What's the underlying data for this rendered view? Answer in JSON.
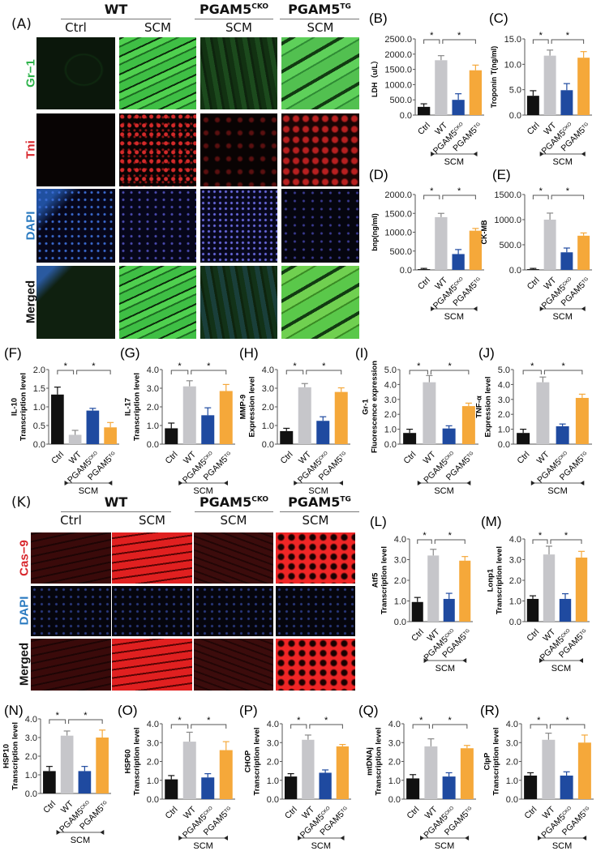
{
  "panel_a": {
    "letter": "(A)",
    "groups": [
      {
        "name": "WT",
        "sup": ""
      },
      {
        "name": "PGAM5",
        "sup": "CKO"
      },
      {
        "name": "PGAM5",
        "sup": "TG"
      }
    ],
    "columns": [
      "Ctrl",
      "SCM",
      "SCM",
      "SCM"
    ],
    "rows": [
      {
        "label": "Gr−1",
        "color": "#2db34a"
      },
      {
        "label": "Tni",
        "color": "#d8262c"
      },
      {
        "label": "DAPI",
        "color": "#2a7ac0"
      },
      {
        "label": "Merged",
        "color": "#111111"
      }
    ]
  },
  "panel_k": {
    "letter": "(K)",
    "groups": [
      {
        "name": "WT",
        "sup": ""
      },
      {
        "name": "PGAM5",
        "sup": "CKO"
      },
      {
        "name": "PGAM5",
        "sup": "TG"
      }
    ],
    "columns": [
      "Ctrl",
      "SCM",
      "SCM",
      "SCM"
    ],
    "rows": [
      {
        "label": "Cas−9",
        "color": "#d8262c"
      },
      {
        "label": "DAPI",
        "color": "#2a7ac0"
      },
      {
        "label": "Merged",
        "color": "#111111"
      }
    ]
  },
  "colors": {
    "Ctrl": "#111111",
    "WT": "#c6c6ca",
    "PGAM5CKO": "#1f4aa0",
    "PGAM5TG": "#f5a83a"
  },
  "chart_data": [
    {
      "letter": "(B)",
      "type": "bar",
      "ylabel": [
        "LDH（u/L）"
      ],
      "ylim": [
        0,
        2500
      ],
      "yticks": [
        "0.0",
        "500.0",
        "1000.0",
        "1500.0",
        "2000.0",
        "2500.0"
      ],
      "tickvals": [
        0,
        500,
        1000,
        1500,
        2000,
        2500
      ],
      "categories": [
        {
          "t": "Ctrl"
        },
        {
          "t": "WT"
        },
        {
          "t": "PGAM5",
          "sup": "CKO"
        },
        {
          "t": "PGAM5",
          "sup": "TG"
        }
      ],
      "values": [
        270,
        1800,
        500,
        1470
      ],
      "errors": [
        100,
        150,
        200,
        170
      ],
      "significance": [
        "*",
        "*"
      ],
      "group_label": "SCM"
    },
    {
      "letter": "(C)",
      "type": "bar",
      "ylabel": [
        "Troponin T(ng/ml)"
      ],
      "ylim": [
        0,
        15
      ],
      "yticks": [
        "0.0",
        "5.0",
        "10.0",
        "15.0"
      ],
      "tickvals": [
        0,
        5,
        10,
        15
      ],
      "categories": [
        {
          "t": "Ctrl"
        },
        {
          "t": "WT"
        },
        {
          "t": "PGAM5",
          "sup": "CKO"
        },
        {
          "t": "PGAM5",
          "sup": "TG"
        }
      ],
      "values": [
        3.8,
        11.7,
        4.9,
        11.3
      ],
      "errors": [
        1.0,
        1.1,
        1.3,
        1.2
      ],
      "significance": [
        "*",
        "*"
      ],
      "group_label": "SCM"
    },
    {
      "letter": "(D)",
      "type": "bar",
      "ylabel": [
        "bnp(ng/ml)"
      ],
      "ylim": [
        0,
        2000
      ],
      "yticks": [
        "0.0",
        "500.0",
        "1000.0",
        "1500.0",
        "2000.0"
      ],
      "tickvals": [
        0,
        500,
        1000,
        1500,
        2000
      ],
      "categories": [
        {
          "t": "Ctrl"
        },
        {
          "t": "WT"
        },
        {
          "t": "PGAM5",
          "sup": "CKO"
        },
        {
          "t": "PGAM5",
          "sup": "TG"
        }
      ],
      "values": [
        20,
        1400,
        420,
        1040
      ],
      "errors": [
        20,
        100,
        120,
        60
      ],
      "significance": [
        "*",
        "*"
      ],
      "group_label": "SCM"
    },
    {
      "letter": "(E)",
      "type": "bar",
      "ylabel": [
        "CK-MB"
      ],
      "ylim": [
        0,
        1500
      ],
      "yticks": [
        "0.0",
        "500.0",
        "1000.0",
        "1500.0"
      ],
      "tickvals": [
        0,
        500,
        1000,
        1500
      ],
      "categories": [
        {
          "t": "Ctrl"
        },
        {
          "t": "WT"
        },
        {
          "t": "PGAM5",
          "sup": "CKO"
        },
        {
          "t": "PGAM5",
          "sup": "TG"
        }
      ],
      "values": [
        15,
        1000,
        350,
        680
      ],
      "errors": [
        15,
        130,
        85,
        55
      ],
      "significance": [
        "*",
        "*"
      ],
      "group_label": "SCM"
    },
    {
      "letter": "(F)",
      "type": "bar",
      "ylabel": [
        "IL-10",
        "Transcription level"
      ],
      "ylim": [
        0,
        2
      ],
      "yticks": [
        "0.0",
        "0.5",
        "1.0",
        "1.5",
        "2.0"
      ],
      "tickvals": [
        0,
        0.5,
        1,
        1.5,
        2
      ],
      "categories": [
        {
          "t": "Ctrl"
        },
        {
          "t": "WT"
        },
        {
          "t": "PGAM5",
          "sup": "CKO"
        },
        {
          "t": "PGAM5",
          "sup": "TG"
        }
      ],
      "values": [
        1.33,
        0.25,
        0.9,
        0.45
      ],
      "errors": [
        0.2,
        0.12,
        0.06,
        0.13
      ],
      "significance": [
        "*",
        "*"
      ],
      "group_label": "SCM"
    },
    {
      "letter": "(G)",
      "type": "bar",
      "ylabel": [
        "IL-17",
        "Transcription level"
      ],
      "ylim": [
        0,
        4
      ],
      "yticks": [
        "0.0",
        "1.0",
        "2.0",
        "3.0",
        "4.0"
      ],
      "tickvals": [
        0,
        1,
        2,
        3,
        4
      ],
      "categories": [
        {
          "t": "Ctrl"
        },
        {
          "t": "WT"
        },
        {
          "t": "PGAM5",
          "sup": "CKO"
        },
        {
          "t": "PGAM5",
          "sup": "TG"
        }
      ],
      "values": [
        0.85,
        3.1,
        1.55,
        2.85
      ],
      "errors": [
        0.28,
        0.3,
        0.4,
        0.35
      ],
      "significance": [
        "*",
        "*"
      ],
      "group_label": "SCM"
    },
    {
      "letter": "(H)",
      "type": "bar",
      "ylabel": [
        "MMP-9",
        "Expression level"
      ],
      "ylim": [
        0,
        4
      ],
      "yticks": [
        "0.0",
        "1.0",
        "2.0",
        "3.0",
        "4.0"
      ],
      "tickvals": [
        0,
        1,
        2,
        3,
        4
      ],
      "categories": [
        {
          "t": "Ctrl"
        },
        {
          "t": "WT"
        },
        {
          "t": "PGAM5",
          "sup": "CKO"
        },
        {
          "t": "PGAM5",
          "sup": "TG"
        }
      ],
      "values": [
        0.7,
        3.05,
        1.25,
        2.8
      ],
      "errors": [
        0.15,
        0.2,
        0.22,
        0.22
      ],
      "significance": [
        "*",
        "*"
      ],
      "group_label": "SCM"
    },
    {
      "letter": "(I)",
      "type": "bar",
      "ylabel": [
        "Gr-1",
        "Fluorescence expression"
      ],
      "ylim": [
        0,
        5
      ],
      "yticks": [
        "0.0",
        "1.0",
        "2.0",
        "3.0",
        "4.0",
        "5.0"
      ],
      "tickvals": [
        0,
        1,
        2,
        3,
        4,
        5
      ],
      "categories": [
        {
          "t": "Ctrl"
        },
        {
          "t": "WT"
        },
        {
          "t": "PGAM5",
          "sup": "CKO"
        },
        {
          "t": "PGAM5",
          "sup": "TG"
        }
      ],
      "values": [
        0.75,
        4.15,
        1.05,
        2.55
      ],
      "errors": [
        0.25,
        0.45,
        0.18,
        0.2
      ],
      "significance": [
        "*",
        "*"
      ],
      "group_label": "SCM"
    },
    {
      "letter": "(J)",
      "type": "bar",
      "ylabel": [
        "TNF-α",
        "Expression level"
      ],
      "ylim": [
        0,
        5
      ],
      "yticks": [
        "0.0",
        "1.0",
        "2.0",
        "3.0",
        "4.0",
        "5.0"
      ],
      "tickvals": [
        0,
        1,
        2,
        3,
        4,
        5
      ],
      "categories": [
        {
          "t": "Ctrl"
        },
        {
          "t": "WT"
        },
        {
          "t": "PGAM5",
          "sup": "CKO"
        },
        {
          "t": "PGAM5",
          "sup": "TG"
        }
      ],
      "values": [
        0.75,
        4.15,
        1.2,
        3.1
      ],
      "errors": [
        0.25,
        0.35,
        0.15,
        0.25
      ],
      "significance": [
        "*",
        "*"
      ],
      "group_label": "SCM"
    },
    {
      "letter": "(L)",
      "type": "bar",
      "ylabel": [
        "Atf5",
        "Transcription level"
      ],
      "ylim": [
        0,
        4
      ],
      "yticks": [
        "0.0",
        "1.0",
        "2.0",
        "3.0",
        "4.0"
      ],
      "tickvals": [
        0,
        1,
        2,
        3,
        4
      ],
      "categories": [
        {
          "t": "Ctrl"
        },
        {
          "t": "WT"
        },
        {
          "t": "PGAM5",
          "sup": "CKO"
        },
        {
          "t": "PGAM5",
          "sup": "TG"
        }
      ],
      "values": [
        0.95,
        3.2,
        1.1,
        2.95
      ],
      "errors": [
        0.22,
        0.3,
        0.27,
        0.2
      ],
      "significance": [
        "*",
        "*"
      ],
      "group_label": "SCM"
    },
    {
      "letter": "(M)",
      "type": "bar",
      "ylabel": [
        "Lonp1",
        "Transcription level"
      ],
      "ylim": [
        0,
        4
      ],
      "yticks": [
        "0.0",
        "1.0",
        "2.0",
        "3.0",
        "4.0"
      ],
      "tickvals": [
        0,
        1,
        2,
        3,
        4
      ],
      "categories": [
        {
          "t": "Ctrl"
        },
        {
          "t": "WT"
        },
        {
          "t": "PGAM5",
          "sup": "CKO"
        },
        {
          "t": "PGAM5",
          "sup": "TG"
        }
      ],
      "values": [
        1.1,
        3.25,
        1.1,
        3.1
      ],
      "errors": [
        0.15,
        0.4,
        0.25,
        0.3
      ],
      "significance": [
        "*",
        "*"
      ],
      "group_label": "SCM"
    },
    {
      "letter": "(N)",
      "type": "bar",
      "ylabel": [
        "HSP10",
        "Transcription level"
      ],
      "ylim": [
        0,
        4
      ],
      "yticks": [
        "0.0",
        "1.0",
        "2.0",
        "3.0",
        "4.0"
      ],
      "tickvals": [
        0,
        1,
        2,
        3,
        4
      ],
      "categories": [
        {
          "t": "Ctrl"
        },
        {
          "t": "WT"
        },
        {
          "t": "PGAM5",
          "sup": "CKO"
        },
        {
          "t": "PGAM5",
          "sup": "TG"
        }
      ],
      "values": [
        1.2,
        3.1,
        1.2,
        3.0
      ],
      "errors": [
        0.25,
        0.25,
        0.25,
        0.4
      ],
      "significance": [
        "*",
        "*"
      ],
      "group_label": "SCM"
    },
    {
      "letter": "(O)",
      "type": "bar",
      "ylabel": [
        "HSP60",
        "Transcription level"
      ],
      "ylim": [
        0,
        4
      ],
      "yticks": [
        "0.0",
        "1.0",
        "2.0",
        "3.0",
        "4.0"
      ],
      "tickvals": [
        0,
        1,
        2,
        3,
        4
      ],
      "categories": [
        {
          "t": "Ctrl"
        },
        {
          "t": "WT"
        },
        {
          "t": "PGAM5",
          "sup": "CKO"
        },
        {
          "t": "PGAM5",
          "sup": "TG"
        }
      ],
      "values": [
        1.05,
        3.05,
        1.15,
        2.6
      ],
      "errors": [
        0.2,
        0.5,
        0.2,
        0.45
      ],
      "significance": [
        "*",
        "*"
      ],
      "group_label": "SCM"
    },
    {
      "letter": "(P)",
      "type": "bar",
      "ylabel": [
        "CHOP",
        "Transcription level"
      ],
      "ylim": [
        0,
        4
      ],
      "yticks": [
        "0.0",
        "1.0",
        "2.0",
        "3.0",
        "4.0"
      ],
      "tickvals": [
        0,
        1,
        2,
        3,
        4
      ],
      "categories": [
        {
          "t": "Ctrl"
        },
        {
          "t": "WT"
        },
        {
          "t": "PGAM5",
          "sup": "CKO"
        },
        {
          "t": "PGAM5",
          "sup": "TG"
        }
      ],
      "values": [
        1.2,
        3.15,
        1.4,
        2.8
      ],
      "errors": [
        0.15,
        0.25,
        0.15,
        0.1
      ],
      "significance": [
        "*",
        "*"
      ],
      "group_label": "SCM"
    },
    {
      "letter": "(Q)",
      "type": "bar",
      "ylabel": [
        "mtDNAj",
        "Transcription level"
      ],
      "ylim": [
        0,
        4
      ],
      "yticks": [
        "0.0",
        "1.0",
        "2.0",
        "3.0",
        "4.0"
      ],
      "tickvals": [
        0,
        1,
        2,
        3,
        4
      ],
      "categories": [
        {
          "t": "Ctrl"
        },
        {
          "t": "WT"
        },
        {
          "t": "PGAM5",
          "sup": "CKO"
        },
        {
          "t": "PGAM5",
          "sup": "TG"
        }
      ],
      "values": [
        1.1,
        2.8,
        1.2,
        2.7
      ],
      "errors": [
        0.2,
        0.4,
        0.2,
        0.15
      ],
      "significance": [
        "*",
        "*"
      ],
      "group_label": "SCM"
    },
    {
      "letter": "(R)",
      "type": "bar",
      "ylabel": [
        "ClpP",
        "Transcription level"
      ],
      "ylim": [
        0,
        4
      ],
      "yticks": [
        "0.0",
        "1.0",
        "2.0",
        "3.0",
        "4.0"
      ],
      "tickvals": [
        0,
        1,
        2,
        3,
        4
      ],
      "categories": [
        {
          "t": "Ctrl"
        },
        {
          "t": "WT"
        },
        {
          "t": "PGAM5",
          "sup": "CKO"
        },
        {
          "t": "PGAM5",
          "sup": "TG"
        }
      ],
      "values": [
        1.25,
        3.15,
        1.25,
        3.0
      ],
      "errors": [
        0.15,
        0.35,
        0.2,
        0.4
      ],
      "significance": [
        "*",
        "*"
      ],
      "group_label": "SCM"
    }
  ]
}
